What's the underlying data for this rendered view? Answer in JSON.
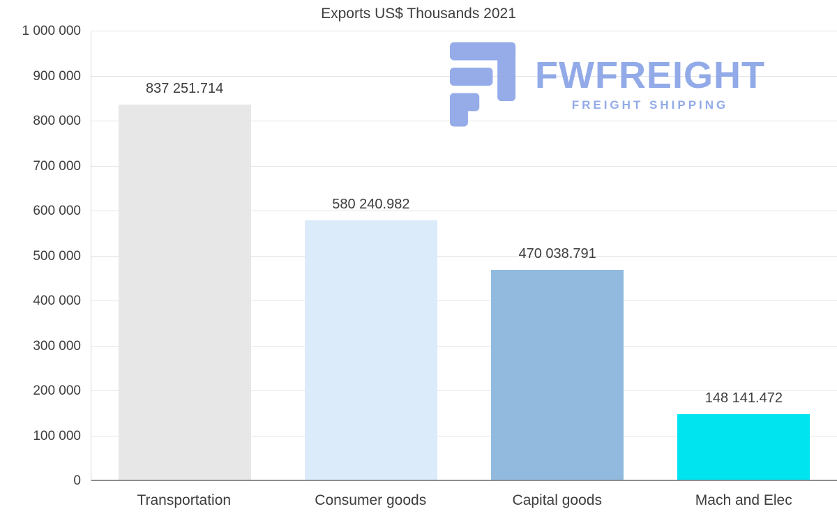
{
  "chart_data": {
    "type": "bar",
    "title": "Exports US$ Thousands 2021",
    "categories": [
      "Transportation",
      "Consumer goods",
      "Capital goods",
      "Mach and Elec"
    ],
    "values": [
      837251.714,
      580240.982,
      470038.791,
      148141.472
    ],
    "value_labels": [
      "837 251.714",
      "580 240.982",
      "470 038.791",
      "148 141.472"
    ],
    "bar_colors": [
      "#e7e7e7",
      "#dcebfa",
      "#91bade",
      "#00e4f0"
    ],
    "xlabel": "",
    "ylabel": "",
    "ylim": [
      0,
      1000000
    ],
    "ytick_interval": 100000,
    "ytick_labels": [
      "0",
      "100 000",
      "200 000",
      "300 000",
      "400 000",
      "500 000",
      "600 000",
      "700 000",
      "800 000",
      "900 000",
      "1 000 000"
    ],
    "grid": true,
    "legend": "none"
  },
  "watermark": {
    "brand": "FWFREIGHT",
    "tagline": "FREIGHT SHIPPING",
    "color": "#8da6e6"
  }
}
